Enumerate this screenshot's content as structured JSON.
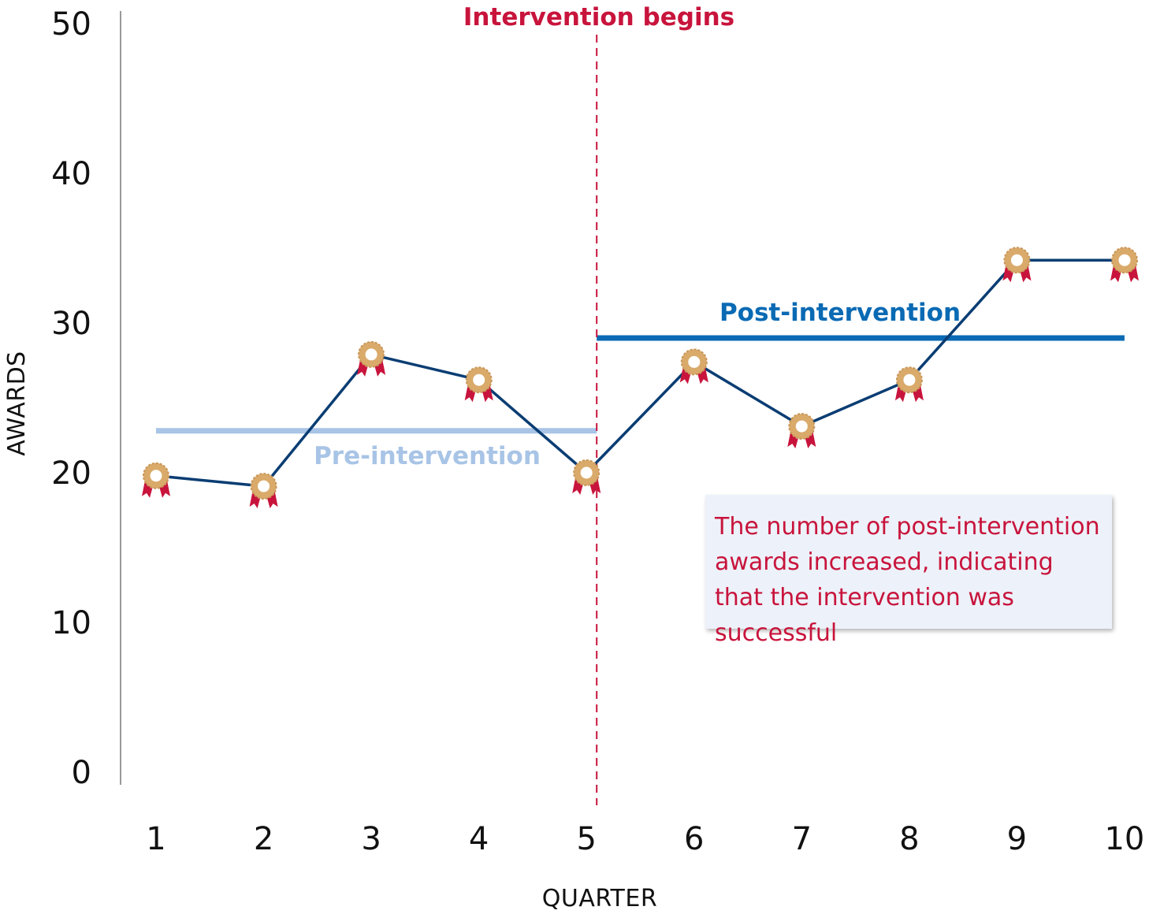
{
  "chart_data": {
    "type": "line",
    "xlabel": "QUARTER",
    "ylabel": "AWARDS",
    "x": [
      1,
      2,
      3,
      4,
      5,
      6,
      7,
      8,
      9,
      10
    ],
    "values": [
      19.8,
      19.1,
      27.9,
      26.2,
      20.0,
      27.4,
      23.1,
      26.2,
      34.2,
      34.2
    ],
    "ylim": [
      0,
      50
    ],
    "yticks": [
      0,
      10,
      20,
      30,
      40,
      50
    ],
    "grid": false,
    "reference_lines": [
      {
        "label": "Pre-intervention",
        "y": 22.8,
        "x_range": [
          1,
          5
        ]
      },
      {
        "label": "Post-intervention",
        "y": 29.0,
        "x_range": [
          5,
          10
        ]
      }
    ],
    "intervention": {
      "label": "Intervention begins",
      "x": 5
    },
    "annotation": "The number of post-intervention awards increased, indicating that the intervention was successful"
  },
  "colors": {
    "series": "#0a3d73",
    "pre_line": "#a8c4e6",
    "post_line": "#0a6ab4",
    "intervention": "#c8143c",
    "marker_ring": "#d9aa6a",
    "marker_ribbon": "#c8143c"
  },
  "marker_icon": "award-medal-icon"
}
